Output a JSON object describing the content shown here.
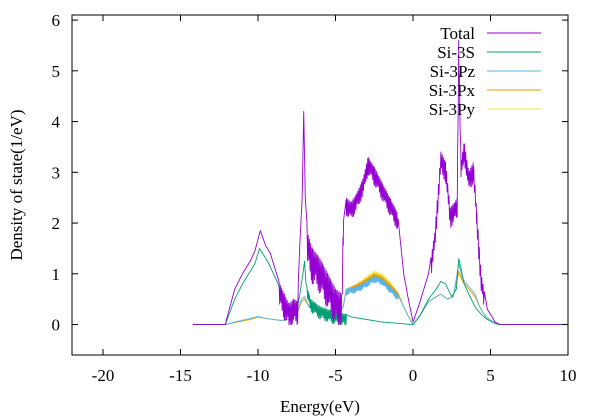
{
  "chart_data": {
    "type": "line",
    "title": "",
    "xlabel": "Energy(eV)",
    "ylabel": "Density of state(1/eV)",
    "xlim": [
      -22,
      10
    ],
    "ylim": [
      -0.6,
      6.1
    ],
    "xticks": [
      -20,
      -15,
      -10,
      -5,
      0,
      5,
      10
    ],
    "yticks": [
      0,
      1,
      2,
      3,
      4,
      5,
      6
    ],
    "grid": false,
    "legend_position": "top-right",
    "series": [
      {
        "name": "Total",
        "color": "#9400d3",
        "oscillation": [
          [
            -8.6,
            -7.4,
            0.5
          ],
          [
            -6.8,
            -4.5,
            0.7
          ],
          [
            -4.3,
            -1.0,
            0.35
          ],
          [
            1.2,
            4.6,
            0.4
          ]
        ],
        "points": [
          [
            -14.2,
            0
          ],
          [
            -12.1,
            0
          ],
          [
            -12.05,
            0.08
          ],
          [
            -11.5,
            0.7
          ],
          [
            -11.0,
            1.0
          ],
          [
            -10.5,
            1.25
          ],
          [
            -10.2,
            1.45
          ],
          [
            -9.85,
            1.85
          ],
          [
            -9.5,
            1.55
          ],
          [
            -9.2,
            1.4
          ],
          [
            -8.9,
            1.1
          ],
          [
            -8.6,
            0.8
          ],
          [
            -8.3,
            0.6
          ],
          [
            -8.0,
            0.4
          ],
          [
            -7.7,
            0.5
          ],
          [
            -7.45,
            0.45
          ],
          [
            -7.3,
            1.6
          ],
          [
            -7.15,
            2.5
          ],
          [
            -7.05,
            4.2
          ],
          [
            -6.95,
            2.5
          ],
          [
            -6.8,
            1.8
          ],
          [
            -6.5,
            1.5
          ],
          [
            -6.0,
            1.3
          ],
          [
            -5.5,
            1.0
          ],
          [
            -5.0,
            0.7
          ],
          [
            -4.6,
            0.6
          ],
          [
            -4.5,
            2.0
          ],
          [
            -4.3,
            2.5
          ],
          [
            -4.0,
            2.4
          ],
          [
            -3.6,
            2.6
          ],
          [
            -3.2,
            2.9
          ],
          [
            -2.9,
            3.3
          ],
          [
            -2.5,
            3.1
          ],
          [
            -2.0,
            2.8
          ],
          [
            -1.5,
            2.5
          ],
          [
            -1.0,
            2.2
          ],
          [
            -0.6,
            1.0
          ],
          [
            -0.3,
            0.5
          ],
          [
            0.0,
            0.05
          ],
          [
            0.4,
            0.4
          ],
          [
            1.0,
            1.0
          ],
          [
            1.4,
            1.8
          ],
          [
            1.8,
            3.4
          ],
          [
            2.1,
            3.2
          ],
          [
            2.4,
            2.3
          ],
          [
            2.7,
            2.4
          ],
          [
            2.85,
            2.5
          ],
          [
            2.95,
            5.6
          ],
          [
            3.1,
            3.2
          ],
          [
            3.3,
            3.6
          ],
          [
            3.6,
            3.0
          ],
          [
            3.9,
            3.2
          ],
          [
            4.1,
            2.3
          ],
          [
            4.4,
            1.0
          ],
          [
            4.8,
            0.3
          ],
          [
            5.3,
            0.05
          ],
          [
            5.6,
            0
          ],
          [
            10,
            0
          ]
        ]
      },
      {
        "name": "Si-3S",
        "color": "#009e73",
        "oscillation": [
          [
            -6.8,
            -4.3,
            0.25
          ]
        ],
        "points": [
          [
            -14.2,
            0
          ],
          [
            -12.1,
            0
          ],
          [
            -12.05,
            0.05
          ],
          [
            -11.5,
            0.5
          ],
          [
            -11.0,
            0.8
          ],
          [
            -10.5,
            1.05
          ],
          [
            -10.2,
            1.2
          ],
          [
            -9.9,
            1.5
          ],
          [
            -9.6,
            1.35
          ],
          [
            -9.3,
            1.2
          ],
          [
            -9.0,
            1.0
          ],
          [
            -8.7,
            0.8
          ],
          [
            -8.4,
            0.55
          ],
          [
            -8.1,
            0.3
          ],
          [
            -7.8,
            0.15
          ],
          [
            -7.5,
            0.25
          ],
          [
            -7.3,
            0.6
          ],
          [
            -7.1,
            1.0
          ],
          [
            -7.0,
            1.25
          ],
          [
            -6.9,
            0.8
          ],
          [
            -6.6,
            0.5
          ],
          [
            -6.0,
            0.35
          ],
          [
            -5.0,
            0.25
          ],
          [
            -4.3,
            0.2
          ],
          [
            -4.0,
            0.15
          ],
          [
            -3.0,
            0.1
          ],
          [
            -2.0,
            0.05
          ],
          [
            -0.8,
            0.02
          ],
          [
            0.0,
            0.0
          ],
          [
            0.4,
            0.15
          ],
          [
            1.0,
            0.5
          ],
          [
            1.5,
            0.7
          ],
          [
            1.8,
            0.85
          ],
          [
            2.1,
            0.8
          ],
          [
            2.5,
            0.55
          ],
          [
            2.8,
            0.7
          ],
          [
            2.95,
            1.3
          ],
          [
            3.1,
            1.1
          ],
          [
            3.3,
            0.8
          ],
          [
            3.6,
            0.6
          ],
          [
            4.0,
            0.35
          ],
          [
            4.4,
            0.2
          ],
          [
            4.8,
            0.1
          ],
          [
            5.3,
            0.02
          ],
          [
            5.6,
            0
          ],
          [
            10,
            0
          ]
        ]
      },
      {
        "name": "Si-3Pz",
        "color": "#56b4e9",
        "oscillation": [
          [
            -4.3,
            -1.0,
            0.12
          ]
        ],
        "points": [
          [
            -14.2,
            0
          ],
          [
            -12.1,
            0
          ],
          [
            -11.5,
            0.05
          ],
          [
            -10.5,
            0.12
          ],
          [
            -10.0,
            0.16
          ],
          [
            -9.5,
            0.12
          ],
          [
            -9.0,
            0.1
          ],
          [
            -8.5,
            0.08
          ],
          [
            -8.0,
            0.1
          ],
          [
            -7.5,
            0.2
          ],
          [
            -7.2,
            0.5
          ],
          [
            -7.0,
            0.55
          ],
          [
            -6.7,
            0.35
          ],
          [
            -6.0,
            0.2
          ],
          [
            -5.0,
            0.12
          ],
          [
            -4.5,
            0.35
          ],
          [
            -4.3,
            0.7
          ],
          [
            -3.6,
            0.75
          ],
          [
            -3.0,
            0.85
          ],
          [
            -2.5,
            0.95
          ],
          [
            -2.0,
            0.9
          ],
          [
            -1.5,
            0.75
          ],
          [
            -1.0,
            0.6
          ],
          [
            -0.6,
            0.35
          ],
          [
            -0.2,
            0.1
          ],
          [
            0.0,
            0.0
          ],
          [
            0.5,
            0.2
          ],
          [
            1.0,
            0.45
          ],
          [
            1.5,
            0.55
          ],
          [
            1.8,
            0.6
          ],
          [
            2.2,
            0.5
          ],
          [
            2.6,
            0.55
          ],
          [
            2.95,
            1.2
          ],
          [
            3.2,
            0.9
          ],
          [
            3.6,
            0.75
          ],
          [
            4.0,
            0.6
          ],
          [
            4.3,
            0.35
          ],
          [
            4.7,
            0.15
          ],
          [
            5.3,
            0.03
          ],
          [
            5.6,
            0
          ],
          [
            10,
            0
          ]
        ]
      },
      {
        "name": "Si-3Px",
        "color": "#e69f00",
        "oscillation": [
          [
            -4.3,
            -1.0,
            0.12
          ]
        ],
        "points": [
          [
            -14.2,
            0
          ],
          [
            -12.1,
            0
          ],
          [
            -11.5,
            0.04
          ],
          [
            -10.5,
            0.1
          ],
          [
            -10.0,
            0.15
          ],
          [
            -9.5,
            0.12
          ],
          [
            -9.0,
            0.1
          ],
          [
            -8.5,
            0.08
          ],
          [
            -8.0,
            0.1
          ],
          [
            -7.5,
            0.2
          ],
          [
            -7.2,
            0.45
          ],
          [
            -7.0,
            0.5
          ],
          [
            -6.7,
            0.35
          ],
          [
            -6.0,
            0.2
          ],
          [
            -5.0,
            0.12
          ],
          [
            -4.5,
            0.35
          ],
          [
            -4.3,
            0.7
          ],
          [
            -3.6,
            0.8
          ],
          [
            -3.0,
            0.9
          ],
          [
            -2.5,
            1.0
          ],
          [
            -2.0,
            0.95
          ],
          [
            -1.5,
            0.8
          ],
          [
            -1.0,
            0.65
          ],
          [
            -0.6,
            0.35
          ],
          [
            -0.2,
            0.1
          ],
          [
            0.0,
            0.0
          ],
          [
            0.5,
            0.2
          ],
          [
            1.0,
            0.45
          ],
          [
            1.5,
            0.55
          ],
          [
            1.8,
            0.6
          ],
          [
            2.2,
            0.5
          ],
          [
            2.6,
            0.55
          ],
          [
            2.95,
            1.05
          ],
          [
            3.2,
            0.85
          ],
          [
            3.6,
            0.7
          ],
          [
            4.0,
            0.55
          ],
          [
            4.3,
            0.35
          ],
          [
            4.7,
            0.15
          ],
          [
            5.3,
            0.03
          ],
          [
            5.6,
            0
          ],
          [
            10,
            0
          ]
        ]
      },
      {
        "name": "Si-3Py",
        "color": "#f0e442",
        "oscillation": [
          [
            -4.3,
            -1.0,
            0.12
          ]
        ],
        "points": [
          [
            -14.2,
            0
          ],
          [
            -12.1,
            0
          ],
          [
            -11.5,
            0.04
          ],
          [
            -10.5,
            0.1
          ],
          [
            -10.0,
            0.14
          ],
          [
            -9.5,
            0.12
          ],
          [
            -9.0,
            0.1
          ],
          [
            -8.5,
            0.08
          ],
          [
            -8.0,
            0.1
          ],
          [
            -7.5,
            0.2
          ],
          [
            -7.2,
            0.45
          ],
          [
            -7.0,
            0.5
          ],
          [
            -6.7,
            0.35
          ],
          [
            -6.0,
            0.2
          ],
          [
            -5.0,
            0.12
          ],
          [
            -4.5,
            0.35
          ],
          [
            -4.3,
            0.7
          ],
          [
            -3.6,
            0.8
          ],
          [
            -3.0,
            0.95
          ],
          [
            -2.5,
            1.05
          ],
          [
            -2.0,
            1.0
          ],
          [
            -1.5,
            0.85
          ],
          [
            -1.0,
            0.65
          ],
          [
            -0.6,
            0.35
          ],
          [
            -0.2,
            0.1
          ],
          [
            0.0,
            0.0
          ],
          [
            0.5,
            0.2
          ],
          [
            1.0,
            0.45
          ],
          [
            1.5,
            0.55
          ],
          [
            1.8,
            0.6
          ],
          [
            2.2,
            0.5
          ],
          [
            2.6,
            0.55
          ],
          [
            2.95,
            1.0
          ],
          [
            3.2,
            0.85
          ],
          [
            3.6,
            0.7
          ],
          [
            4.0,
            0.55
          ],
          [
            4.3,
            0.35
          ],
          [
            4.7,
            0.15
          ],
          [
            5.3,
            0.03
          ],
          [
            5.6,
            0
          ],
          [
            10,
            0
          ]
        ]
      }
    ]
  }
}
